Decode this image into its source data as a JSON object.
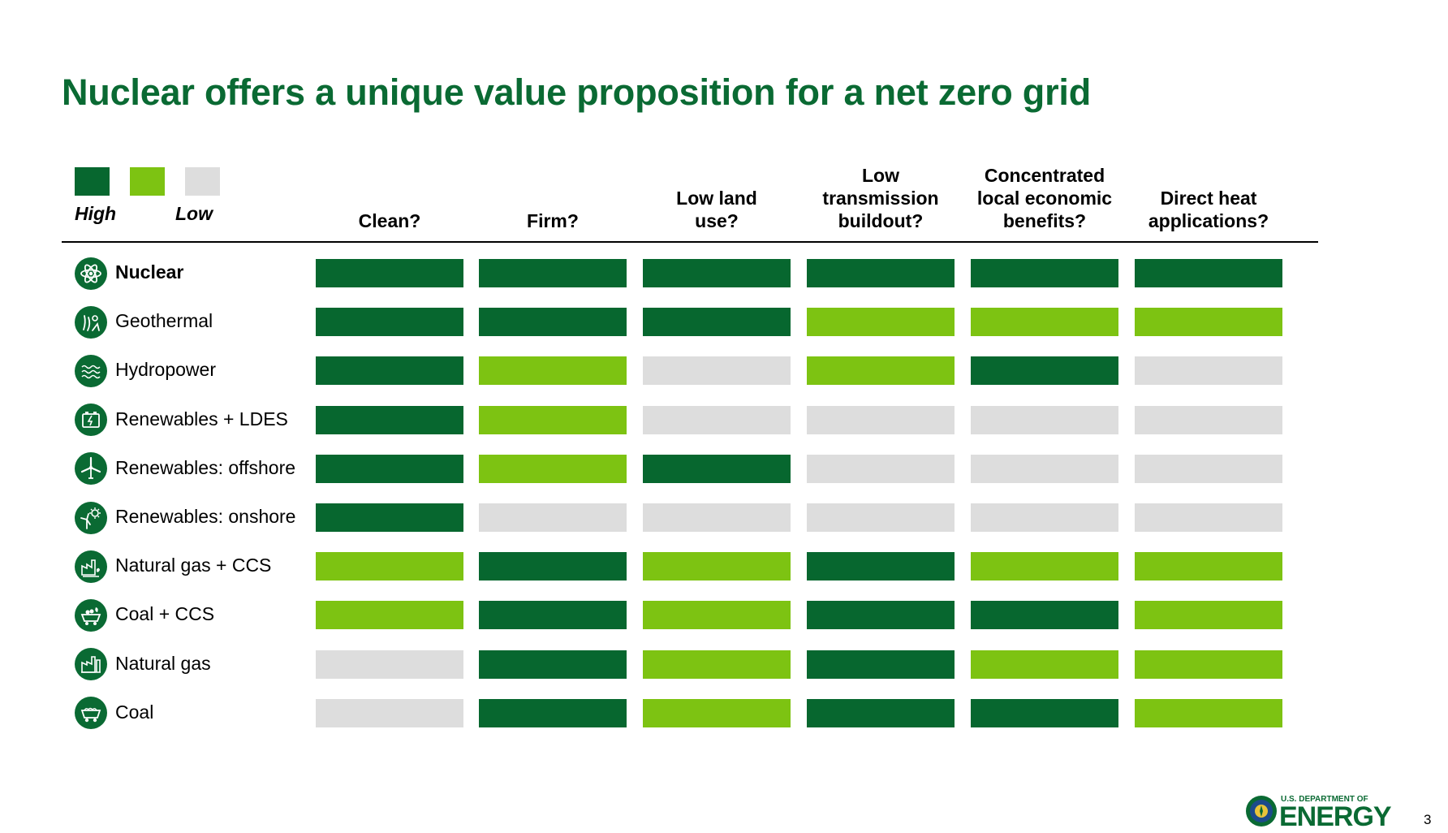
{
  "title": "Nuclear offers a unique value proposition for a net zero grid",
  "colors": {
    "high": "#07672f",
    "medium": "#7dc312",
    "low": "#dddddd",
    "brand_green": "#0a6a33"
  },
  "legend": {
    "high_label": "High",
    "low_label": "Low",
    "levels": [
      "high",
      "medium",
      "low"
    ]
  },
  "columns": [
    "Clean?",
    "Firm?",
    "Low land\nuse?",
    "Low\ntransmission\nbuildout?",
    "Concentrated\nlocal economic\nbenefits?",
    "Direct heat\napplications?"
  ],
  "rows": [
    {
      "label": "Nuclear",
      "icon": "atom-icon",
      "bold": true,
      "ratings": [
        "high",
        "high",
        "high",
        "high",
        "high",
        "high"
      ]
    },
    {
      "label": "Geothermal",
      "icon": "geothermal-icon",
      "bold": false,
      "ratings": [
        "high",
        "high",
        "high",
        "medium",
        "medium",
        "medium"
      ]
    },
    {
      "label": "Hydropower",
      "icon": "water-waves-icon",
      "bold": false,
      "ratings": [
        "high",
        "medium",
        "low",
        "medium",
        "high",
        "low"
      ]
    },
    {
      "label": "Renewables + LDES",
      "icon": "battery-icon",
      "bold": false,
      "ratings": [
        "high",
        "medium",
        "low",
        "low",
        "low",
        "low"
      ]
    },
    {
      "label": "Renewables: offshore",
      "icon": "wind-turbine-icon",
      "bold": false,
      "ratings": [
        "high",
        "medium",
        "high",
        "low",
        "low",
        "low"
      ]
    },
    {
      "label": "Renewables: onshore",
      "icon": "sun-wind-icon",
      "bold": false,
      "ratings": [
        "high",
        "low",
        "low",
        "low",
        "low",
        "low"
      ]
    },
    {
      "label": "Natural gas + CCS",
      "icon": "gas-plant-ccs-icon",
      "bold": false,
      "ratings": [
        "medium",
        "high",
        "medium",
        "high",
        "medium",
        "medium"
      ]
    },
    {
      "label": "Coal + CCS",
      "icon": "coal-cart-ccs-icon",
      "bold": false,
      "ratings": [
        "medium",
        "high",
        "medium",
        "high",
        "high",
        "medium"
      ]
    },
    {
      "label": "Natural gas",
      "icon": "factory-icon",
      "bold": false,
      "ratings": [
        "low",
        "high",
        "medium",
        "high",
        "medium",
        "medium"
      ]
    },
    {
      "label": "Coal",
      "icon": "coal-cart-icon",
      "bold": false,
      "ratings": [
        "low",
        "high",
        "medium",
        "high",
        "high",
        "medium"
      ]
    }
  ],
  "footer": {
    "logo_small": "U.S. DEPARTMENT OF",
    "logo_big": "ENERGY",
    "page_number": "3"
  }
}
